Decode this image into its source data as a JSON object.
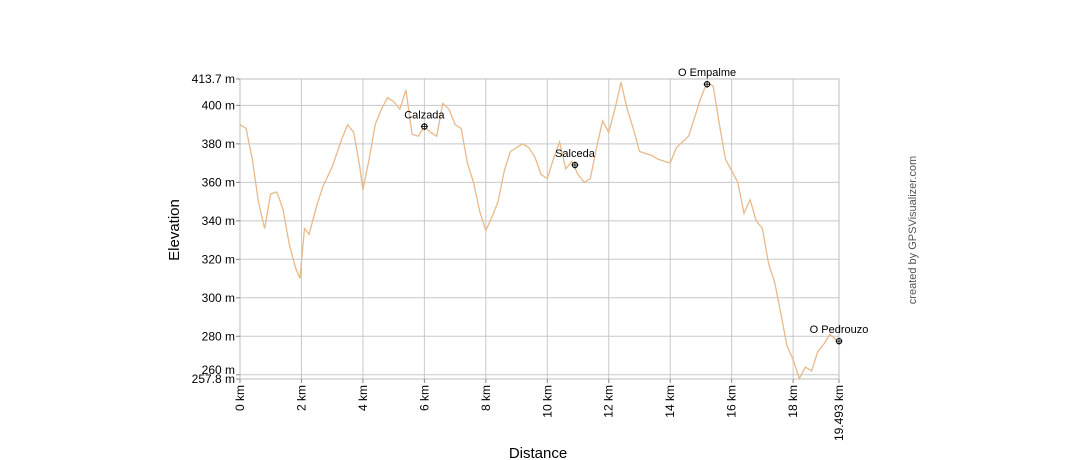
{
  "chart_data": {
    "type": "line",
    "title": "",
    "xlabel": "Distance",
    "ylabel": "Elevation",
    "xlim": [
      0,
      19.493
    ],
    "ylim": [
      257.8,
      413.7
    ],
    "grid": true,
    "line_color": "#e8b98a",
    "x_ticks": [
      {
        "value": 0,
        "label": "0 km"
      },
      {
        "value": 2,
        "label": "2 km"
      },
      {
        "value": 4,
        "label": "4 km"
      },
      {
        "value": 6,
        "label": "6 km"
      },
      {
        "value": 8,
        "label": "8 km"
      },
      {
        "value": 10,
        "label": "10 km"
      },
      {
        "value": 12,
        "label": "12 km"
      },
      {
        "value": 14,
        "label": "14 km"
      },
      {
        "value": 16,
        "label": "16 km"
      },
      {
        "value": 18,
        "label": "18 km"
      },
      {
        "value": 19.493,
        "label": "19.493 km"
      }
    ],
    "y_ticks": [
      {
        "value": 257.8,
        "label": "257.8 m"
      },
      {
        "value": 260,
        "label": "260 m"
      },
      {
        "value": 280,
        "label": "280 m"
      },
      {
        "value": 300,
        "label": "300 m"
      },
      {
        "value": 320,
        "label": "320 m"
      },
      {
        "value": 340,
        "label": "340 m"
      },
      {
        "value": 360,
        "label": "360 m"
      },
      {
        "value": 380,
        "label": "380 m"
      },
      {
        "value": 400,
        "label": "400 m"
      },
      {
        "value": 413.7,
        "label": "413.7 m"
      }
    ],
    "series": [
      {
        "x": [
          0,
          0.2,
          0.4,
          0.6,
          0.8,
          1.0,
          1.2,
          1.4,
          1.6,
          1.8,
          1.95,
          2.1,
          2.25,
          2.5,
          2.7,
          3.0,
          3.3,
          3.5,
          3.7,
          3.9,
          4.0,
          4.2,
          4.4,
          4.6,
          4.8,
          5.0,
          5.2,
          5.4,
          5.6,
          5.8,
          6.0,
          6.2,
          6.4,
          6.6,
          6.8,
          7.0,
          7.2,
          7.4,
          7.6,
          7.8,
          8.0,
          8.2,
          8.4,
          8.6,
          8.8,
          9.0,
          9.2,
          9.4,
          9.6,
          9.8,
          10.0,
          10.2,
          10.4,
          10.6,
          10.8,
          11.0,
          11.2,
          11.4,
          11.6,
          11.8,
          12.0,
          12.2,
          12.4,
          12.6,
          12.8,
          13.0,
          13.2,
          13.4,
          13.6,
          13.8,
          14.0,
          14.2,
          14.4,
          14.6,
          14.8,
          15.0,
          15.2,
          15.4,
          15.6,
          15.8,
          16.0,
          16.2,
          16.4,
          16.6,
          16.8,
          17.0,
          17.2,
          17.4,
          17.6,
          17.8,
          18.0,
          18.2,
          18.4,
          18.6,
          18.8,
          19.0,
          19.2,
          19.493
        ],
        "y": [
          390,
          388,
          372,
          350,
          336,
          354,
          355,
          346,
          328,
          316,
          310,
          336,
          333,
          348,
          358,
          368,
          382,
          390,
          386,
          368,
          356,
          372,
          390,
          398,
          404,
          402,
          398,
          408,
          385,
          384,
          389,
          386,
          384,
          401,
          398,
          390,
          388,
          370,
          360,
          345,
          335,
          342,
          350,
          366,
          376,
          378,
          380,
          378,
          373,
          364,
          362,
          372,
          381,
          367,
          371,
          364,
          360,
          362,
          378,
          392,
          386,
          398,
          412,
          398,
          388,
          376,
          375,
          374,
          372,
          371,
          370,
          378,
          381,
          384,
          394,
          404,
          412,
          410,
          390,
          372,
          366,
          360,
          344,
          351,
          340,
          336,
          318,
          308,
          292,
          275,
          268,
          258,
          264,
          262,
          272,
          276,
          281,
          277
        ]
      }
    ],
    "waypoints": [
      {
        "name": "Calzada",
        "x": 6.0,
        "y": 389
      },
      {
        "name": "Salceda",
        "x": 10.9,
        "y": 369
      },
      {
        "name": "O Empalme",
        "x": 15.2,
        "y": 411
      },
      {
        "name": "O Pedrouzo",
        "x": 19.493,
        "y": 277.5
      }
    ]
  },
  "credit": "created by GPSVisualizer.com"
}
